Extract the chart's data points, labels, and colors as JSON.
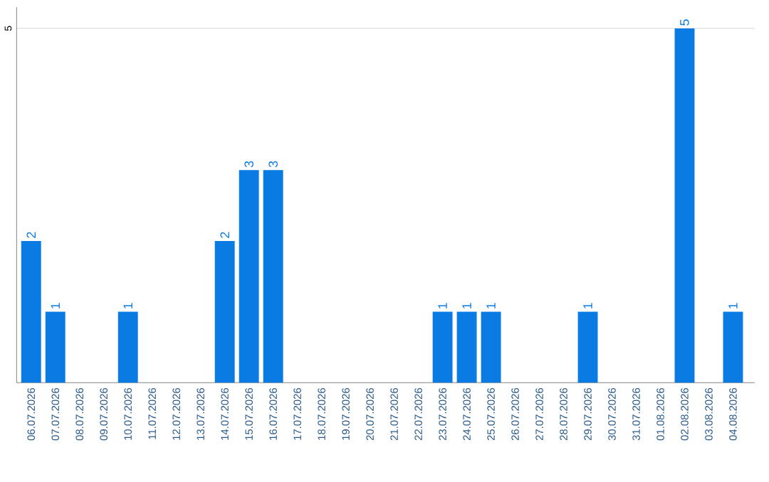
{
  "chart_data": {
    "type": "bar",
    "categories": [
      "06.07.2026",
      "07.07.2026",
      "08.07.2026",
      "09.07.2026",
      "10.07.2026",
      "11.07.2026",
      "12.07.2026",
      "13.07.2026",
      "14.07.2026",
      "15.07.2026",
      "16.07.2026",
      "17.07.2026",
      "18.07.2026",
      "19.07.2026",
      "20.07.2026",
      "21.07.2026",
      "22.07.2026",
      "23.07.2026",
      "24.07.2026",
      "25.07.2026",
      "26.07.2026",
      "27.07.2026",
      "28.07.2026",
      "29.07.2026",
      "30.07.2026",
      "31.07.2026",
      "01.08.2026",
      "02.08.2026",
      "03.08.2026",
      "04.08.2026"
    ],
    "values": [
      2,
      1,
      0,
      0,
      1,
      0,
      0,
      0,
      2,
      3,
      3,
      0,
      0,
      0,
      0,
      0,
      0,
      1,
      1,
      1,
      0,
      0,
      0,
      1,
      0,
      0,
      0,
      5,
      0,
      1
    ],
    "value_labels": [
      "2",
      "1",
      null,
      null,
      "1",
      null,
      null,
      null,
      "2",
      "3",
      "3",
      null,
      null,
      null,
      null,
      null,
      null,
      "1",
      "1",
      "1",
      null,
      null,
      null,
      "1",
      null,
      null,
      null,
      "5",
      null,
      "1"
    ],
    "color": "#0a7be3",
    "ylim": [
      0,
      5.3
    ],
    "yticks": [
      5
    ],
    "grid": "y"
  }
}
